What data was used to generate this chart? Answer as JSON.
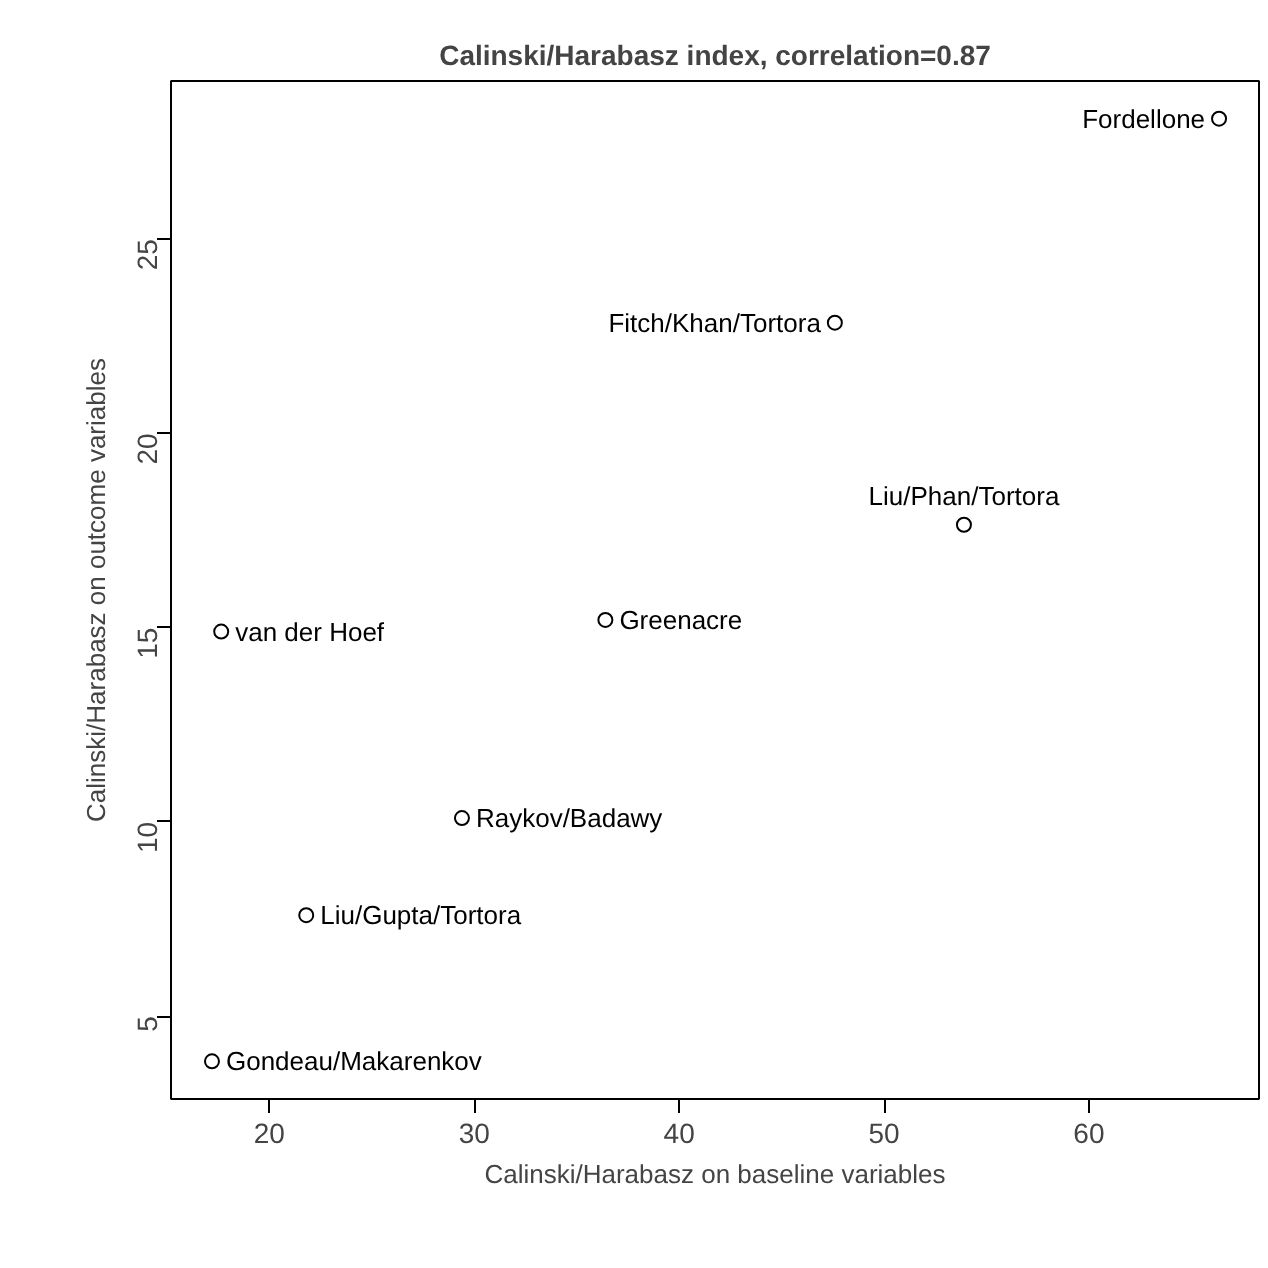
{
  "chart_data": {
    "type": "scatter",
    "title": "Calinski/Harabasz index, correlation=0.87",
    "xlabel": "Calinski/Harabasz on baseline variables",
    "ylabel": "Calinski/Harabasz on outcome variables",
    "x": [
      17.2,
      17.65,
      21.8,
      29.4,
      36.4,
      47.6,
      53.9,
      66.35
    ],
    "values": [
      3.84,
      14.9,
      7.6,
      10.1,
      15.2,
      22.85,
      17.65,
      28.1
    ],
    "color": "#000000",
    "marker": "circle",
    "grid": false,
    "xlim": [
      15.2,
      68.3
    ],
    "ylim": [
      2.87,
      29.07
    ],
    "xticks": [
      20,
      30,
      40,
      50,
      60
    ],
    "yticks": [
      5,
      10,
      15,
      20,
      25
    ],
    "annotations": [
      {
        "text": "Gondeau/Makarenkov",
        "x": 17.2,
        "y": 3.84
      },
      {
        "text": "van der Hoef",
        "x": 17.65,
        "y": 14.9
      },
      {
        "text": "Liu/Gupta/Tortora",
        "x": 21.8,
        "y": 7.6
      },
      {
        "text": "Raykov/Badawy",
        "x": 29.4,
        "y": 10.1
      },
      {
        "text": "Greenacre",
        "x": 36.4,
        "y": 15.2
      },
      {
        "text": "Fitch/Khan/Tortora",
        "x": 47.6,
        "y": 22.85
      },
      {
        "text": "Liu/Phan/Tortora",
        "x": 53.9,
        "y": 17.65
      },
      {
        "text": "Fordellone",
        "x": 66.35,
        "y": 28.1
      }
    ]
  }
}
